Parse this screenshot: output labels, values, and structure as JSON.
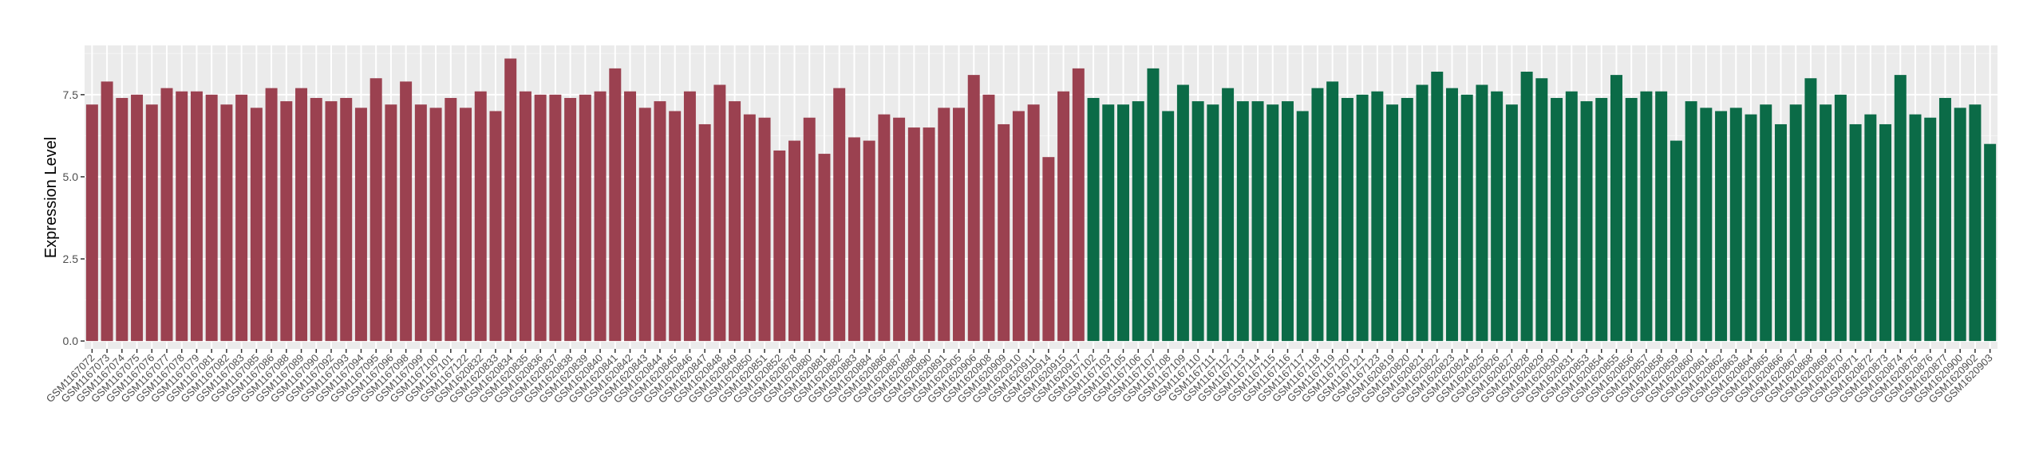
{
  "chart_data": {
    "type": "bar",
    "y_label": "Expression Level",
    "categories": [
      "GSM1167072",
      "GSM1167073",
      "GSM1167074",
      "GSM1167075",
      "GSM1167076",
      "GSM1167077",
      "GSM1167078",
      "GSM1167079",
      "GSM1167081",
      "GSM1167082",
      "GSM1167083",
      "GSM1167085",
      "GSM1167086",
      "GSM1167088",
      "GSM1167089",
      "GSM1167090",
      "GSM1167092",
      "GSM1167093",
      "GSM1167094",
      "GSM1167095",
      "GSM1167096",
      "GSM1167098",
      "GSM1167099",
      "GSM1167100",
      "GSM1167101",
      "GSM1167122",
      "GSM1620832",
      "GSM1620833",
      "GSM1620834",
      "GSM1620835",
      "GSM1620836",
      "GSM1620837",
      "GSM1620838",
      "GSM1620839",
      "GSM1620840",
      "GSM1620841",
      "GSM1620842",
      "GSM1620843",
      "GSM1620844",
      "GSM1620845",
      "GSM1620846",
      "GSM1620847",
      "GSM1620848",
      "GSM1620849",
      "GSM1620850",
      "GSM1620851",
      "GSM1620852",
      "GSM1620878",
      "GSM1620880",
      "GSM1620881",
      "GSM1620882",
      "GSM1620883",
      "GSM1620884",
      "GSM1620886",
      "GSM1620887",
      "GSM1620888",
      "GSM1620890",
      "GSM1620891",
      "GSM1620905",
      "GSM1620906",
      "GSM1620908",
      "GSM1620909",
      "GSM1620910",
      "GSM1620911",
      "GSM1620914",
      "GSM1620915",
      "GSM1620917",
      "GSM1167102",
      "GSM1167103",
      "GSM1167105",
      "GSM1167106",
      "GSM1167107",
      "GSM1167108",
      "GSM1167109",
      "GSM1167110",
      "GSM1167111",
      "GSM1167112",
      "GSM1167113",
      "GSM1167114",
      "GSM1167115",
      "GSM1167116",
      "GSM1167117",
      "GSM1167118",
      "GSM1167119",
      "GSM1167120",
      "GSM1167121",
      "GSM1167123",
      "GSM1620819",
      "GSM1620820",
      "GSM1620821",
      "GSM1620822",
      "GSM1620823",
      "GSM1620824",
      "GSM1620825",
      "GSM1620826",
      "GSM1620827",
      "GSM1620828",
      "GSM1620829",
      "GSM1620830",
      "GSM1620831",
      "GSM1620853",
      "GSM1620854",
      "GSM1620855",
      "GSM1620856",
      "GSM1620857",
      "GSM1620858",
      "GSM1620859",
      "GSM1620860",
      "GSM1620861",
      "GSM1620862",
      "GSM1620863",
      "GSM1620864",
      "GSM1620865",
      "GSM1620866",
      "GSM1620867",
      "GSM1620868",
      "GSM1620869",
      "GSM1620870",
      "GSM1620871",
      "GSM1620872",
      "GSM1620873",
      "GSM1620874",
      "GSM1620875",
      "GSM1620876",
      "GSM1620877",
      "GSM1620900",
      "GSM1620902",
      "GSM1620903"
    ],
    "series": [
      {
        "color": "#9b4150",
        "values": [
          7.2,
          7.9,
          7.4,
          7.5,
          7.2,
          7.7,
          7.6,
          7.6,
          7.5,
          7.2,
          7.5,
          7.1,
          7.7,
          7.3,
          7.7,
          7.4,
          7.3,
          7.4,
          7.1,
          8.0,
          7.2,
          7.9,
          7.2,
          7.1,
          7.4,
          7.1,
          7.6,
          7.0,
          8.6,
          7.6,
          7.5,
          7.5,
          7.4,
          7.5,
          7.6,
          8.3,
          7.6,
          7.1,
          7.3,
          7.0,
          7.6,
          6.6,
          7.8,
          7.3,
          6.9,
          6.8,
          5.8,
          6.1,
          6.8,
          5.7,
          7.7,
          6.2,
          6.1,
          6.9,
          6.8,
          6.5,
          6.5,
          7.1,
          7.1,
          8.1,
          7.5,
          6.6,
          7.0,
          7.2,
          5.6,
          7.6,
          8.3,
          null,
          null,
          null,
          null,
          null,
          null,
          null,
          null,
          null,
          null,
          null,
          null,
          null,
          null,
          null,
          null,
          null,
          null,
          null,
          null,
          null,
          null,
          null,
          null,
          null,
          null,
          null,
          null,
          null,
          null,
          null,
          null,
          null,
          null,
          null,
          null,
          null,
          null,
          null,
          null,
          null,
          null,
          null,
          null,
          null,
          null,
          null,
          null,
          null,
          null,
          null,
          null,
          null,
          null,
          null,
          null,
          null,
          null,
          null,
          null,
          null
        ]
      },
      {
        "color": "#0b6b47",
        "values": [
          null,
          null,
          null,
          null,
          null,
          null,
          null,
          null,
          null,
          null,
          null,
          null,
          null,
          null,
          null,
          null,
          null,
          null,
          null,
          null,
          null,
          null,
          null,
          null,
          null,
          null,
          null,
          null,
          null,
          null,
          null,
          null,
          null,
          null,
          null,
          null,
          null,
          null,
          null,
          null,
          null,
          null,
          null,
          null,
          null,
          null,
          null,
          null,
          null,
          null,
          null,
          null,
          null,
          null,
          null,
          null,
          null,
          null,
          null,
          null,
          null,
          null,
          null,
          null,
          null,
          null,
          null,
          7.4,
          7.2,
          7.2,
          7.3,
          8.3,
          7.0,
          7.8,
          7.3,
          7.2,
          7.7,
          7.3,
          7.3,
          7.2,
          7.3,
          7.0,
          7.7,
          7.9,
          7.4,
          7.5,
          7.6,
          7.2,
          7.4,
          7.8,
          8.2,
          7.7,
          7.5,
          7.8,
          7.6,
          7.2,
          8.2,
          8.0,
          7.4,
          7.6,
          7.3,
          7.4,
          8.1,
          7.4,
          7.6,
          7.6,
          6.1,
          7.3,
          7.1,
          7.0,
          7.1,
          6.9,
          7.2,
          6.6,
          7.2,
          8.0,
          7.2,
          7.5,
          6.6,
          6.9,
          6.6,
          8.1,
          6.9,
          6.8,
          7.4,
          7.1,
          7.2,
          6.0
        ]
      }
    ],
    "ylim": [
      -0.24,
      9.0
    ],
    "yticks": [
      {
        "value": 0,
        "label": "0.0"
      },
      {
        "value": 2.5,
        "label": "2.5"
      },
      {
        "value": 5,
        "label": "5.0"
      },
      {
        "value": 7.5,
        "label": "7.5"
      }
    ],
    "grid": true
  }
}
